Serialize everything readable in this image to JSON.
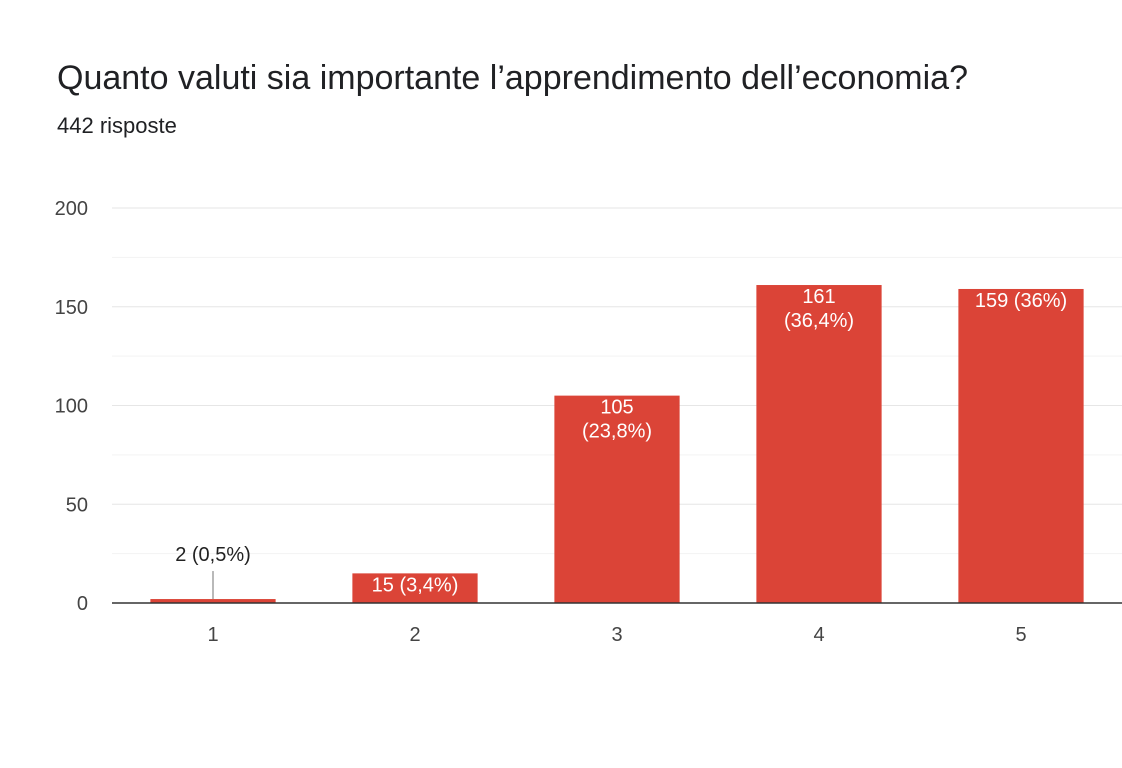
{
  "chart_data": {
    "type": "bar",
    "title": "Quanto valuti sia importante l’apprendimento dell’economia?",
    "subtitle": "442 risposte",
    "categories": [
      "1",
      "2",
      "3",
      "4",
      "5"
    ],
    "values": [
      2,
      15,
      105,
      161,
      159
    ],
    "data_labels": [
      [
        "2 (0,5%)"
      ],
      [
        "15 (3,4%)"
      ],
      [
        "105",
        "(23,8%)"
      ],
      [
        "161",
        "(36,4%)"
      ],
      [
        "159 (36%)"
      ]
    ],
    "y_ticks": [
      "0",
      "50",
      "100",
      "150",
      "200"
    ],
    "ylim": [
      0,
      200
    ],
    "xlabel": "",
    "ylabel": "",
    "grid": true,
    "bar_color": "#db4437"
  }
}
